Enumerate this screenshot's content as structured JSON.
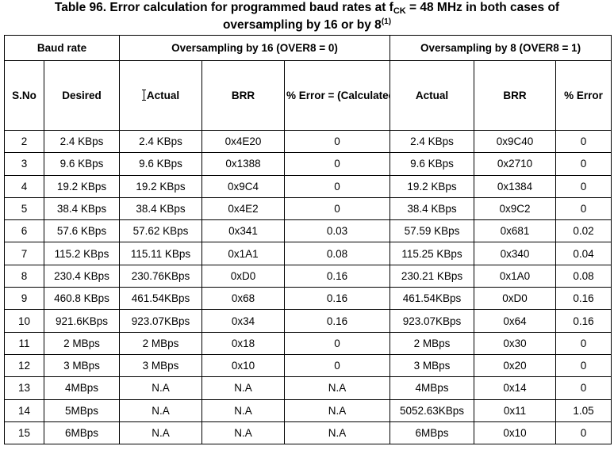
{
  "title": {
    "prefix": "Table 96. Error calculation for programmed baud rates at f",
    "sub": "CK",
    "suffix": " = 48 MHz in both cases of",
    "line2": "oversampling by 16 or by 8",
    "sup": "(1)"
  },
  "groups": {
    "baud_rate": "Baud rate",
    "over16": "Oversampling by 16 (OVER8 = 0)",
    "over8": "Oversampling by 8 (OVER8 = 1)"
  },
  "columns": {
    "sno": "S.No",
    "desired": "Desired",
    "actual16": "Actual",
    "brr16": "BRR",
    "error16": "% Error = (Calculated - Desired)B.Rate / Desired B.Rate",
    "actual8": "Actual",
    "brr8": "BRR",
    "error8": "% Error"
  },
  "rows": [
    {
      "sno": "2",
      "desired": "2.4 KBps",
      "actual16": "2.4 KBps",
      "brr16": "0x4E20",
      "err16": "0",
      "actual8": "2.4 KBps",
      "brr8": "0x9C40",
      "err8": "0"
    },
    {
      "sno": "3",
      "desired": "9.6 KBps",
      "actual16": "9.6 KBps",
      "brr16": "0x1388",
      "err16": "0",
      "actual8": "9.6 KBps",
      "brr8": "0x2710",
      "err8": "0"
    },
    {
      "sno": "4",
      "desired": "19.2 KBps",
      "actual16": "19.2 KBps",
      "brr16": "0x9C4",
      "err16": "0",
      "actual8": "19.2 KBps",
      "brr8": "0x1384",
      "err8": "0"
    },
    {
      "sno": "5",
      "desired": "38.4 KBps",
      "actual16": "38.4 KBps",
      "brr16": "0x4E2",
      "err16": "0",
      "actual8": "38.4 KBps",
      "brr8": "0x9C2",
      "err8": "0"
    },
    {
      "sno": "6",
      "desired": "57.6 KBps",
      "actual16": "57.62 KBps",
      "brr16": "0x341",
      "err16": "0.03",
      "actual8": "57.59 KBps",
      "brr8": "0x681",
      "err8": "0.02"
    },
    {
      "sno": "7",
      "desired": "115.2 KBps",
      "actual16": "115.11 KBps",
      "brr16": "0x1A1",
      "err16": "0.08",
      "actual8": "115.25 KBps",
      "brr8": "0x340",
      "err8": "0.04"
    },
    {
      "sno": "8",
      "desired": "230.4 KBps",
      "actual16": "230.76KBps",
      "brr16": "0xD0",
      "err16": "0.16",
      "actual8": "230.21 KBps",
      "brr8": "0x1A0",
      "err8": "0.08"
    },
    {
      "sno": "9",
      "desired": "460.8 KBps",
      "actual16": "461.54KBps",
      "brr16": "0x68",
      "err16": "0.16",
      "actual8": "461.54KBps",
      "brr8": "0xD0",
      "err8": "0.16"
    },
    {
      "sno": "10",
      "desired": "921.6KBps",
      "actual16": "923.07KBps",
      "brr16": "0x34",
      "err16": "0.16",
      "actual8": "923.07KBps",
      "brr8": "0x64",
      "err8": "0.16"
    },
    {
      "sno": "11",
      "desired": "2 MBps",
      "actual16": "2 MBps",
      "brr16": "0x18",
      "err16": "0",
      "actual8": "2 MBps",
      "brr8": "0x30",
      "err8": "0"
    },
    {
      "sno": "12",
      "desired": "3 MBps",
      "actual16": "3 MBps",
      "brr16": "0x10",
      "err16": "0",
      "actual8": "3 MBps",
      "brr8": "0x20",
      "err8": "0"
    },
    {
      "sno": "13",
      "desired": "4MBps",
      "actual16": "N.A",
      "brr16": "N.A",
      "err16": "N.A",
      "actual8": "4MBps",
      "brr8": "0x14",
      "err8": "0"
    },
    {
      "sno": "14",
      "desired": "5MBps",
      "actual16": "N.A",
      "brr16": "N.A",
      "err16": "N.A",
      "actual8": "5052.63KBps",
      "brr8": "0x11",
      "err8": "1.05"
    },
    {
      "sno": "15",
      "desired": "6MBps",
      "actual16": "N.A",
      "brr16": "N.A",
      "err16": "N.A",
      "actual8": "6MBps",
      "brr8": "0x10",
      "err8": "0"
    }
  ]
}
